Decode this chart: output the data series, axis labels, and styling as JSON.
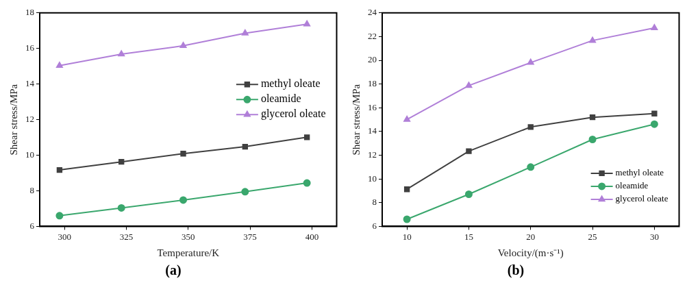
{
  "chart_data": [
    {
      "type": "line",
      "xlabel": "Temperature/K",
      "ylabel": "Shear stress/MPa",
      "x": [
        298,
        323,
        348,
        373,
        398
      ],
      "xlim": [
        290,
        410
      ],
      "xticks": [
        300,
        325,
        350,
        375,
        400
      ],
      "ylim": [
        6,
        18
      ],
      "yticks": [
        6,
        8,
        10,
        12,
        14,
        16,
        18
      ],
      "grid": false,
      "legend": "right",
      "annotations": [
        "(a)"
      ],
      "series": [
        {
          "name": "methyl oleate",
          "color": "#404040",
          "marker": "square",
          "values": [
            9.17,
            9.63,
            10.09,
            10.48,
            11.01
          ]
        },
        {
          "name": "oleamide",
          "color": "#3aa76d",
          "marker": "circle",
          "values": [
            6.6,
            7.04,
            7.48,
            7.95,
            8.44
          ]
        },
        {
          "name": "glycerol oleate",
          "color": "#b07fd8",
          "marker": "triangle",
          "values": [
            15.04,
            15.68,
            16.15,
            16.86,
            17.37
          ]
        }
      ]
    },
    {
      "type": "line",
      "xlabel": "Velocity/(m·s⁻¹)",
      "ylabel": "Shear stress/MPa",
      "x": [
        10,
        15,
        20,
        25,
        30
      ],
      "xlim": [
        8,
        32
      ],
      "xticks": [
        10,
        15,
        20,
        25,
        30
      ],
      "ylim": [
        6,
        24
      ],
      "yticks": [
        6,
        8,
        10,
        12,
        14,
        16,
        18,
        20,
        22,
        24
      ],
      "grid": false,
      "legend": "bottom right",
      "annotations": [
        "(b)"
      ],
      "series": [
        {
          "name": "methyl oleate",
          "color": "#404040",
          "marker": "square",
          "values": [
            9.13,
            12.34,
            14.38,
            15.2,
            15.51
          ]
        },
        {
          "name": "oleamide",
          "color": "#3aa76d",
          "marker": "circle",
          "values": [
            6.6,
            8.71,
            11.0,
            13.33,
            14.62
          ]
        },
        {
          "name": "glycerol oleate",
          "color": "#b07fd8",
          "marker": "triangle",
          "values": [
            15.01,
            17.87,
            19.81,
            21.67,
            22.73
          ]
        }
      ]
    }
  ]
}
